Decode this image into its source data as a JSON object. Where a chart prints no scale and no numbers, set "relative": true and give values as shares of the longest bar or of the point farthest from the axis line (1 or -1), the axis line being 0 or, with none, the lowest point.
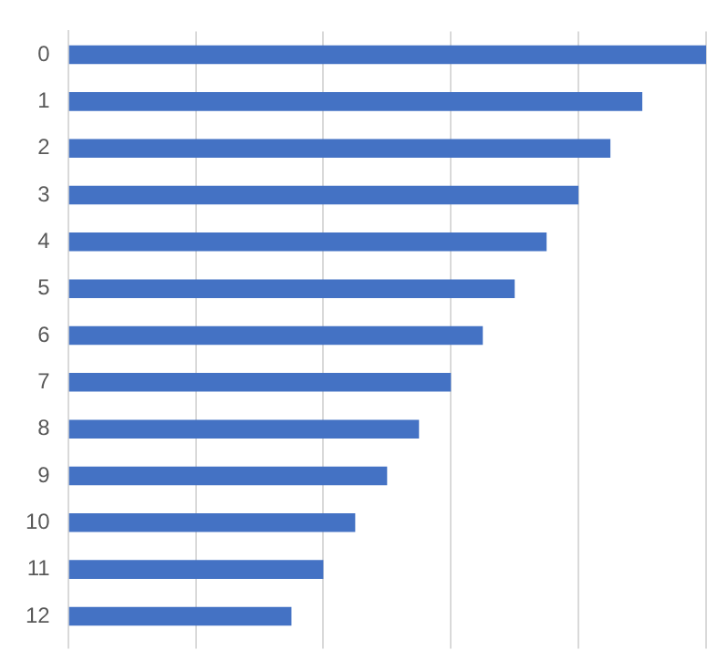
{
  "chart_data": {
    "type": "bar",
    "orientation": "horizontal",
    "relative": true,
    "grid": "x",
    "color": "#4472c4",
    "categories": [
      "0",
      "1",
      "2",
      "3",
      "4",
      "5",
      "6",
      "7",
      "8",
      "9",
      "10",
      "11",
      "12"
    ],
    "values": [
      1,
      0.9,
      0.85,
      0.8,
      0.75,
      0.7,
      0.65,
      0.6,
      0.55,
      0.5,
      0.45,
      0.4,
      0.35
    ]
  }
}
